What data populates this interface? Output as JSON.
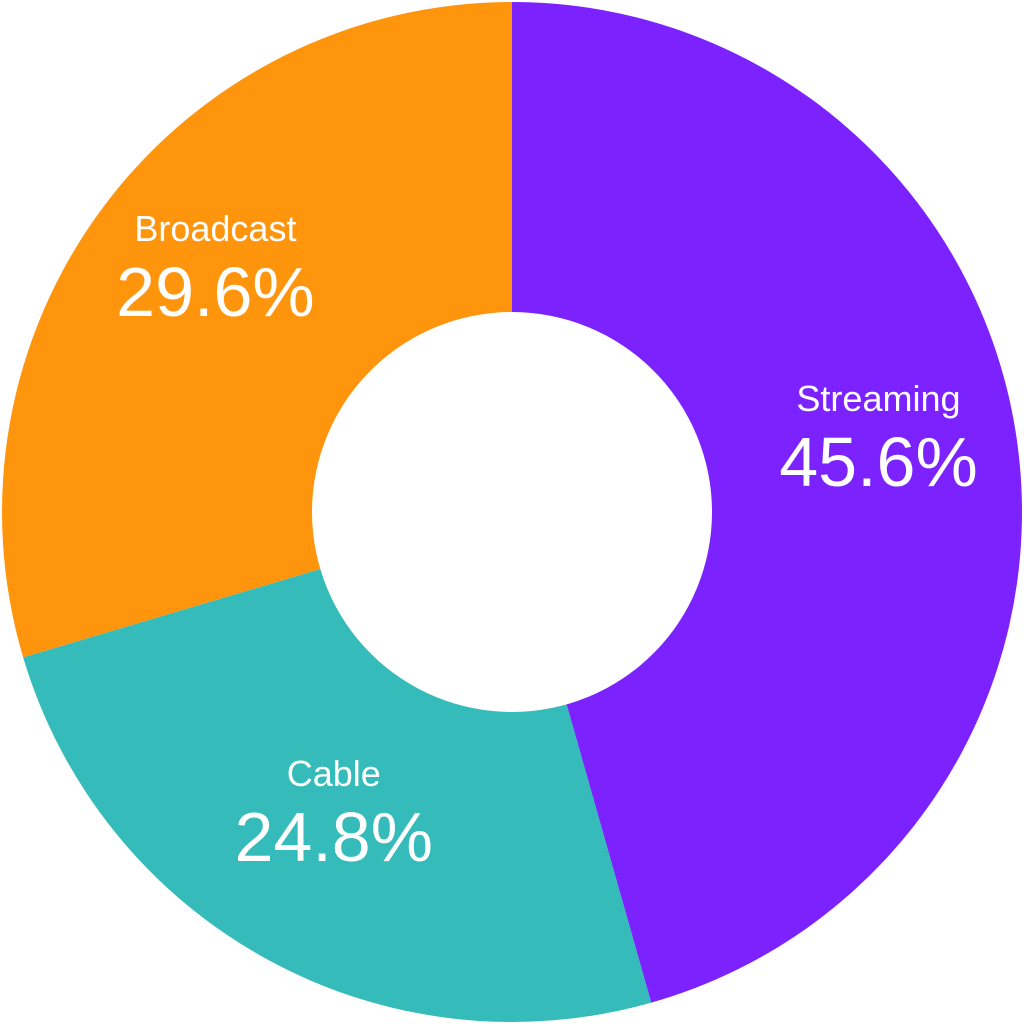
{
  "chart_data": {
    "type": "pie",
    "donut": true,
    "start_angle_deg": 0,
    "direction": "clockwise",
    "slices": [
      {
        "label": "Streaming",
        "value": 45.6,
        "display": "45.6%",
        "color": "#7b22ff"
      },
      {
        "label": "Cable",
        "value": 24.8,
        "display": "24.8%",
        "color": "#35bbb9"
      },
      {
        "label": "Broadcast",
        "value": 29.6,
        "display": "29.6%",
        "color": "#ff940d"
      }
    ]
  }
}
